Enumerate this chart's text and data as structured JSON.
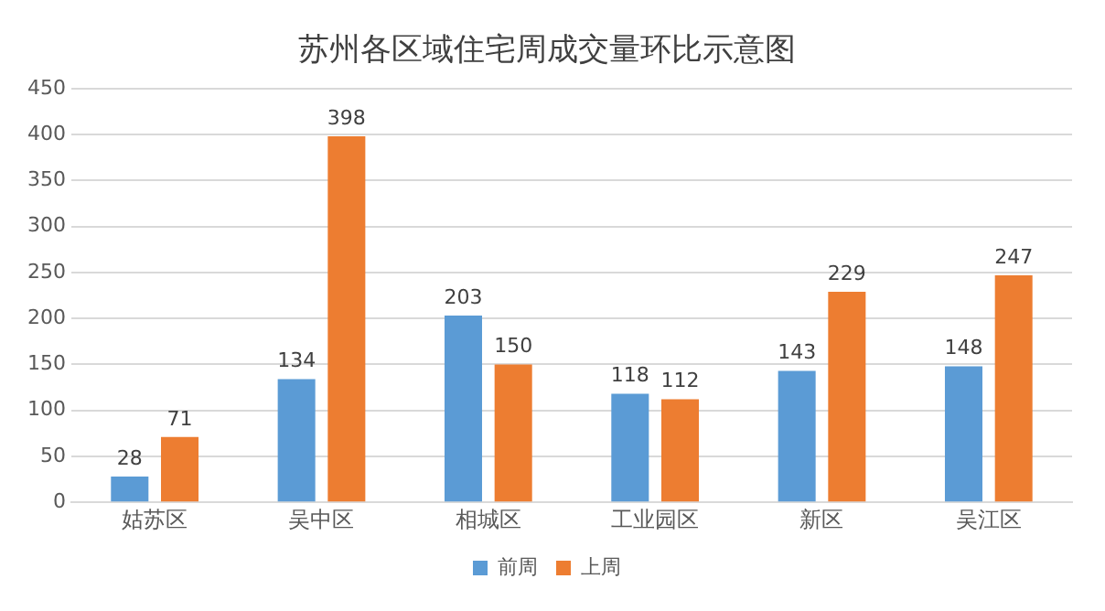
{
  "chart_data": {
    "type": "bar",
    "title": "苏州各区域住宅周成交量环比示意图",
    "categories": [
      "姑苏区",
      "吴中区",
      "相城区",
      "工业园区",
      "新区",
      "吴江区"
    ],
    "series": [
      {
        "name": "前周",
        "color": "#5b9bd5",
        "values": [
          28,
          134,
          203,
          118,
          143,
          148
        ]
      },
      {
        "name": "上周",
        "color": "#ed7d31",
        "values": [
          71,
          398,
          150,
          112,
          229,
          247
        ]
      }
    ],
    "ylim": [
      0,
      450
    ],
    "yticks": [
      0,
      50,
      100,
      150,
      200,
      250,
      300,
      350,
      400,
      450
    ],
    "grid": "y",
    "legend": "bottom",
    "data_labels": true
  }
}
